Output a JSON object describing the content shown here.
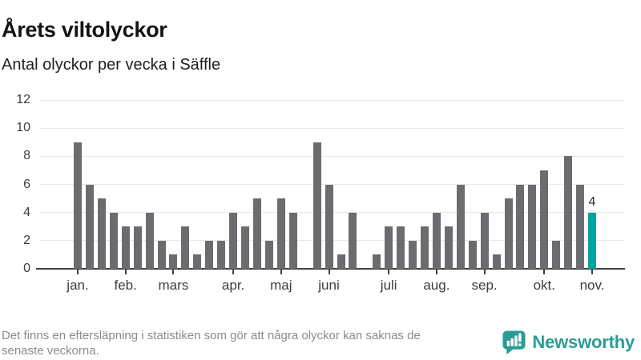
{
  "header": {
    "title": "Årets viltolyckor",
    "subtitle": "Antal olyckor per vecka i Säffle"
  },
  "chart_data": {
    "type": "bar",
    "title": "Årets viltolyckor",
    "subtitle": "Antal olyckor per vecka i Säffle",
    "xlabel": "",
    "ylabel": "",
    "ylim": [
      0,
      12
    ],
    "y_ticks": [
      0,
      2,
      4,
      6,
      8,
      10,
      12
    ],
    "grid": "horizontal",
    "values": [
      9,
      6,
      5,
      4,
      3,
      3,
      4,
      2,
      1,
      3,
      1,
      2,
      2,
      4,
      3,
      5,
      2,
      5,
      4,
      0,
      9,
      6,
      1,
      4,
      0,
      1,
      3,
      3,
      2,
      3,
      4,
      3,
      6,
      2,
      4,
      1,
      5,
      6,
      6,
      7,
      2,
      8,
      6,
      4
    ],
    "months": [
      {
        "label": "jan.",
        "slot": 0
      },
      {
        "label": "feb.",
        "slot": 4
      },
      {
        "label": "mars",
        "slot": 8
      },
      {
        "label": "apr.",
        "slot": 13
      },
      {
        "label": "maj",
        "slot": 17
      },
      {
        "label": "juni",
        "slot": 21
      },
      {
        "label": "juli",
        "slot": 26
      },
      {
        "label": "aug.",
        "slot": 30
      },
      {
        "label": "sep.",
        "slot": 34
      },
      {
        "label": "okt.",
        "slot": 39
      },
      {
        "label": "nov.",
        "slot": 43
      }
    ],
    "highlight": {
      "slot": 43,
      "label": "4",
      "color": "#00a49e"
    },
    "bar_color": "#6c6c70",
    "axis_color": "#424242",
    "gridline_color": "#e7e7e7"
  },
  "footer": {
    "note_lines": [
      "Det finns en eftersläpning i statistiken som gör att några olyckor kan saknas de",
      "senaste veckorna."
    ],
    "brand": "Newsworthy",
    "brand_color": "#2b9c95"
  }
}
